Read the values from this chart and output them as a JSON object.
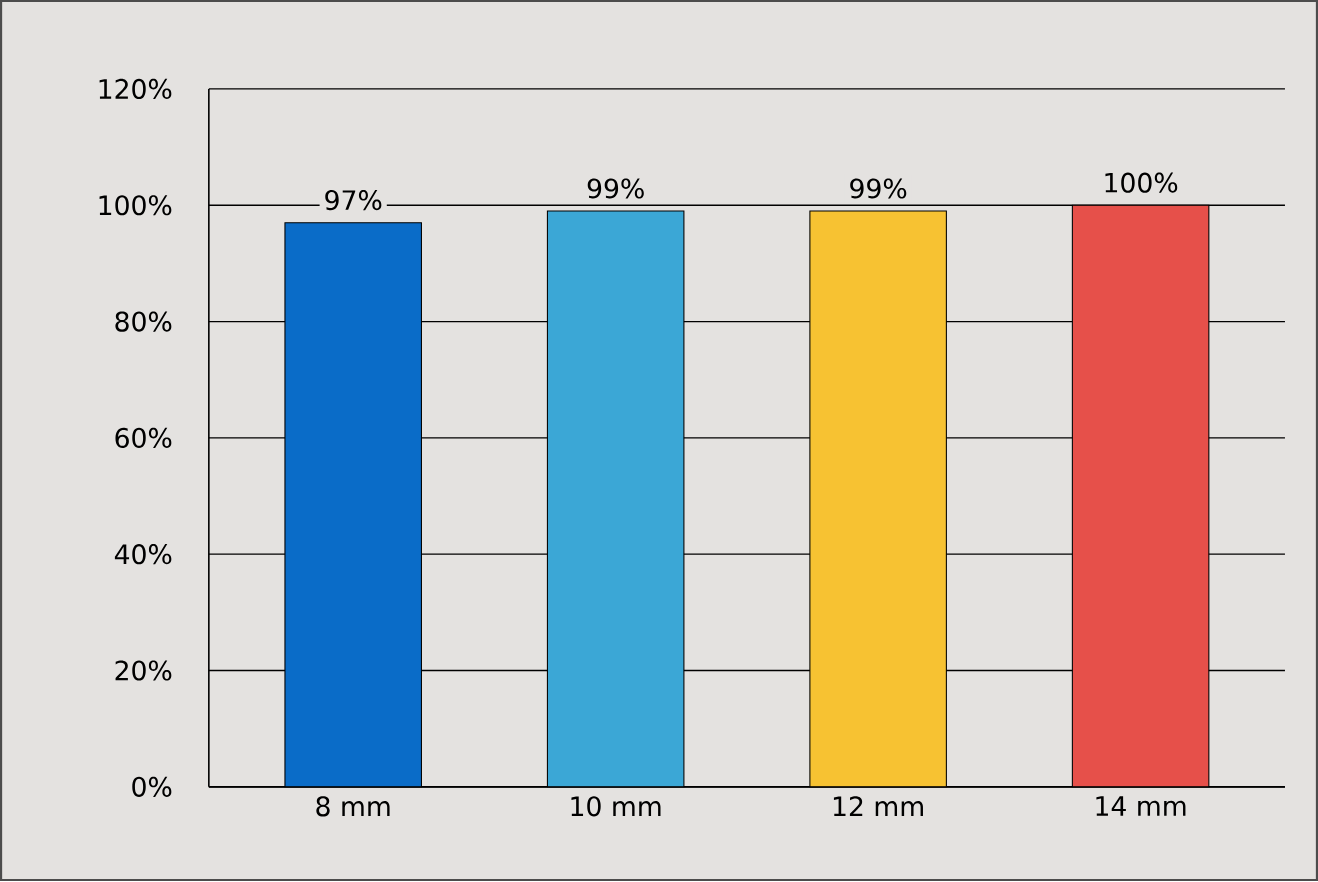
{
  "chart_data": {
    "type": "bar",
    "categories": [
      "8 mm",
      "10 mm",
      "12 mm",
      "14 mm"
    ],
    "values": [
      97,
      99,
      99,
      100
    ],
    "colors": [
      "#0a6cc8",
      "#3ba7d6",
      "#f7c232",
      "#e6504a"
    ],
    "value_labels": [
      "97%",
      "99%",
      "99%",
      "100%"
    ],
    "ylim": [
      0,
      120
    ],
    "yticks": [
      {
        "value": 0,
        "label": "0%"
      },
      {
        "value": 20,
        "label": "20%"
      },
      {
        "value": 40,
        "label": "40%"
      },
      {
        "value": 60,
        "label": "60%"
      },
      {
        "value": 80,
        "label": "80%"
      },
      {
        "value": 100,
        "label": "100%"
      },
      {
        "value": 120,
        "label": "120%"
      }
    ],
    "grid": "y"
  }
}
